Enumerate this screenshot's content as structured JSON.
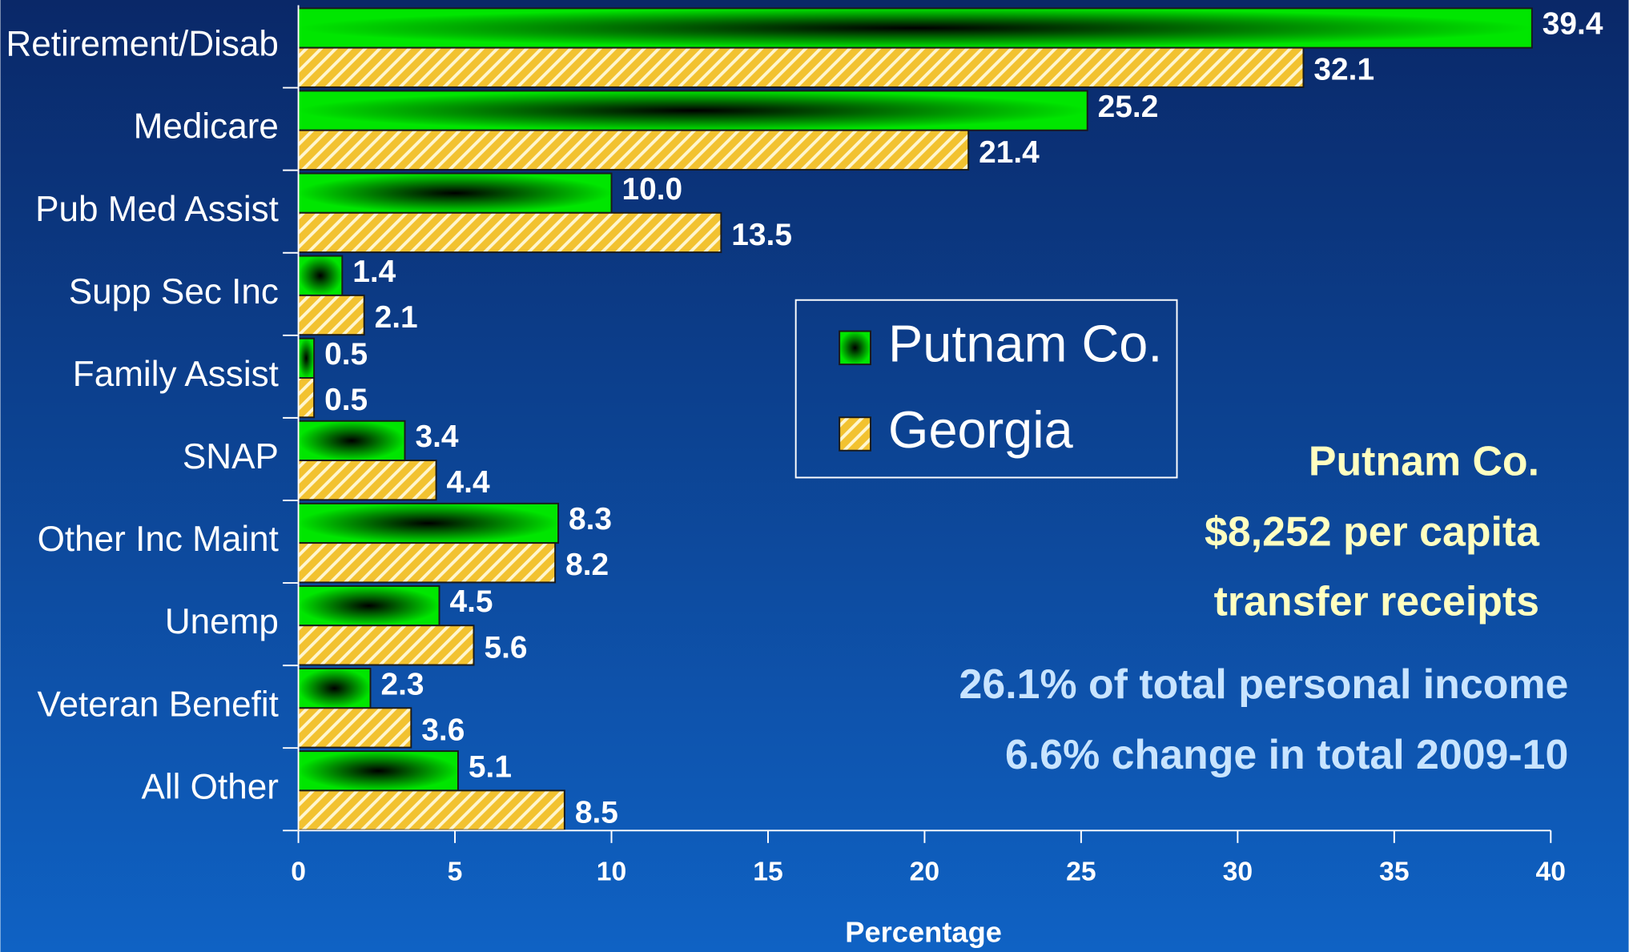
{
  "chart_data": {
    "type": "hbar",
    "categories": [
      "Retirement/Disab",
      "Medicare",
      "Pub Med Assist",
      "Supp Sec Inc",
      "Family Assist",
      "SNAP",
      "Other Inc Maint",
      "Unemp",
      "Veteran Benefit",
      "All Other"
    ],
    "series": [
      {
        "name": "Putnam Co.",
        "color": "#00e600",
        "values": [
          39.4,
          25.2,
          10.0,
          1.4,
          0.5,
          3.4,
          8.3,
          4.5,
          2.3,
          5.1
        ],
        "value_labels": [
          "39.4",
          "25.2",
          "10.0",
          "1.4",
          "0.5",
          "3.4",
          "8.3",
          "4.5",
          "2.3",
          "5.1"
        ]
      },
      {
        "name": "Georgia",
        "color": "#f2c230",
        "values": [
          32.1,
          21.4,
          13.5,
          2.1,
          0.5,
          4.4,
          8.2,
          5.6,
          3.6,
          8.5
        ],
        "value_labels": [
          "32.1",
          "21.4",
          "13.5",
          "2.1",
          "0.5",
          "4.4",
          "8.2",
          "5.6",
          "3.6",
          "8.5"
        ]
      }
    ],
    "xlabel": "Percentage",
    "xlim": [
      0,
      40
    ],
    "xticks": [
      0,
      5,
      10,
      15,
      20,
      25,
      30,
      35,
      40
    ],
    "legend": "center",
    "annotations": [
      "Putnam Co.",
      "$8,252 per capita",
      "transfer receipts",
      "26.1% of total personal income",
      "6.6% change in total 2009-10"
    ]
  }
}
